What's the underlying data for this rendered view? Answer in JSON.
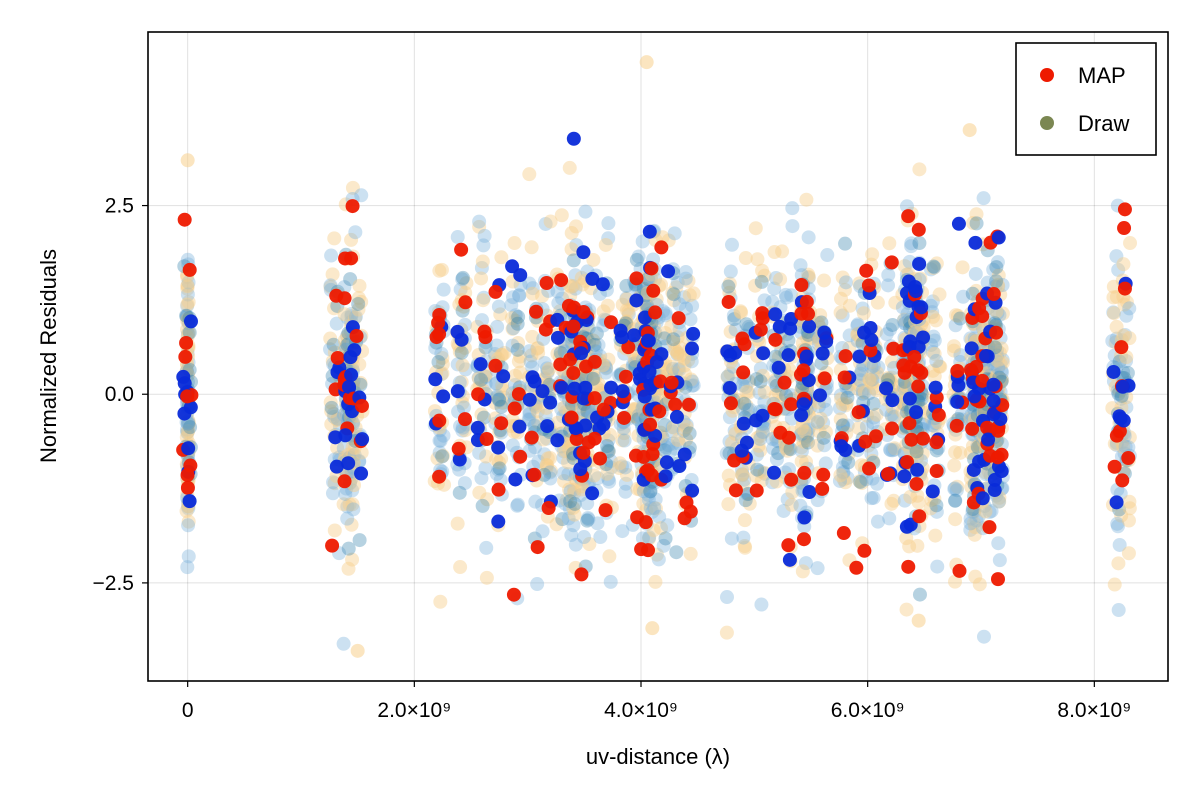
{
  "chart_data": {
    "type": "scatter",
    "title": "",
    "xlabel": "uv-distance (λ)",
    "ylabel": "Normalized Residuals",
    "xlim": [
      -350000000,
      8650000000
    ],
    "ylim": [
      -3.8,
      4.8
    ],
    "x_ticks": [
      {
        "value": 0,
        "label": "0"
      },
      {
        "value": 2000000000,
        "label": "2.0×10⁹"
      },
      {
        "value": 4000000000,
        "label": "4.0×10⁹"
      },
      {
        "value": 6000000000,
        "label": "6.0×10⁹"
      },
      {
        "value": 8000000000,
        "label": "8.0×10⁹"
      }
    ],
    "y_ticks": [
      {
        "value": 2.5,
        "label": "2.5"
      },
      {
        "value": 0.0,
        "label": "0.0"
      },
      {
        "value": -2.5,
        "label": "−2.5"
      }
    ],
    "grid": true,
    "legend_position": "top-right",
    "legend": [
      {
        "name": "MAP",
        "color": "#ee1a00"
      },
      {
        "name": "Draw",
        "color": "#7b8752"
      }
    ],
    "colors": {
      "map_red": "#ee1a00",
      "map_blue": "#0a2bd9",
      "draw_blue": "#7ab0da",
      "draw_orange": "#f7cf8c",
      "draw_teal": "#2d7fa8"
    },
    "x_clusters_e9": [
      0,
      1.3,
      1.42,
      1.5,
      2.22,
      2.42,
      2.6,
      2.75,
      2.9,
      3.05,
      3.17,
      3.3,
      3.4,
      3.5,
      3.6,
      3.7,
      3.85,
      3.97,
      4.05,
      4.1,
      4.2,
      4.3,
      4.42,
      4.8,
      4.92,
      5.05,
      5.2,
      5.3,
      5.45,
      5.6,
      5.8,
      5.95,
      6.05,
      6.2,
      6.35,
      6.45,
      6.6,
      6.8,
      6.95,
      7.05,
      7.15,
      8.2,
      8.27
    ],
    "highlighted_points": [
      {
        "x": 0,
        "y": 3.1,
        "series": "Draw"
      },
      {
        "x": 4.05,
        "y": 4.4,
        "series": "Draw"
      },
      {
        "x": 6.9,
        "y": 3.5,
        "series": "Draw"
      },
      {
        "x": 1.5,
        "y": -3.4,
        "series": "Draw"
      },
      {
        "x": 4.1,
        "y": -3.1,
        "series": "Draw"
      },
      {
        "x": 6.45,
        "y": -3.0,
        "series": "Draw"
      },
      {
        "x": 2.22,
        "y": 1.05,
        "series": "MAP"
      },
      {
        "x": 2.22,
        "y": -0.35,
        "series": "MAP"
      },
      {
        "x": 8.27,
        "y": 2.45,
        "series": "MAP"
      },
      {
        "x": 8.27,
        "y": 1.4,
        "series": "MAP"
      },
      {
        "x": 5.3,
        "y": -2.0,
        "series": "MAP"
      },
      {
        "x": 5.9,
        "y": -2.3,
        "series": "MAP"
      },
      {
        "x": 7.15,
        "y": -2.45,
        "series": "MAP"
      }
    ]
  }
}
